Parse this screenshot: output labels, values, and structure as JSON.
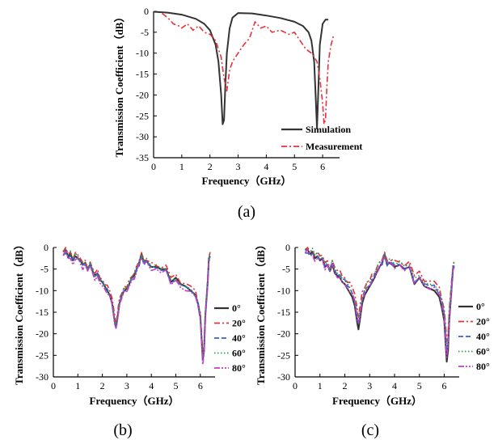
{
  "chart_data": [
    {
      "id": "a",
      "type": "line",
      "caption": "(a)",
      "xlabel": "Frequency（GHz）",
      "ylabel": "Transmission Coefficient（dB）",
      "xlim": [
        0,
        6.6
      ],
      "ylim": [
        -35,
        0
      ],
      "xticks": [
        0,
        1,
        2,
        3,
        4,
        5,
        6
      ],
      "yticks": [
        0,
        -5,
        -10,
        -15,
        -20,
        -25,
        -30,
        -35
      ],
      "legend_position": "bottom-right",
      "series": [
        {
          "name": "Simulation",
          "color": "#333333",
          "dash": "solid",
          "x": [
            0,
            0.5,
            1.0,
            1.5,
            1.8,
            2.0,
            2.2,
            2.3,
            2.4,
            2.45,
            2.5,
            2.55,
            2.6,
            2.7,
            2.8,
            3.0,
            3.5,
            4.0,
            4.5,
            5.0,
            5.3,
            5.5,
            5.6,
            5.7,
            5.75,
            5.8,
            5.85,
            5.9,
            6.0,
            6.1,
            6.2
          ],
          "y": [
            -0.1,
            -0.3,
            -0.8,
            -1.8,
            -3.0,
            -4.5,
            -8.0,
            -12.0,
            -20.0,
            -27.0,
            -26.0,
            -17.0,
            -10.0,
            -4.0,
            -1.5,
            -0.4,
            -0.5,
            -1.0,
            -1.6,
            -2.5,
            -3.5,
            -5.0,
            -7.0,
            -12.0,
            -20.0,
            -28.0,
            -18.0,
            -8.0,
            -3.0,
            -2.0,
            -2.0
          ]
        },
        {
          "name": "Measurement",
          "color": "#e8303a",
          "dash": "dashdot",
          "x": [
            0.3,
            0.5,
            0.7,
            0.9,
            1.0,
            1.2,
            1.4,
            1.6,
            1.8,
            2.0,
            2.2,
            2.4,
            2.5,
            2.6,
            2.7,
            2.8,
            3.0,
            3.2,
            3.4,
            3.6,
            3.8,
            4.0,
            4.2,
            4.5,
            4.8,
            5.0,
            5.2,
            5.4,
            5.6,
            5.8,
            5.9,
            6.0,
            6.05,
            6.1,
            6.15,
            6.2,
            6.3,
            6.4
          ],
          "y": [
            -0.5,
            -1.5,
            -3.0,
            -3.5,
            -4.0,
            -3.0,
            -4.5,
            -3.5,
            -5.0,
            -5.5,
            -7.0,
            -11.0,
            -16.0,
            -19.0,
            -14.0,
            -12.0,
            -10.0,
            -8.0,
            -6.5,
            -2.5,
            -4.0,
            -3.5,
            -5.0,
            -4.5,
            -5.5,
            -5.0,
            -7.0,
            -9.0,
            -10.0,
            -12.0,
            -16.0,
            -22.0,
            -27.0,
            -26.0,
            -18.0,
            -12.0,
            -8.0,
            -5.5
          ]
        }
      ]
    },
    {
      "id": "b",
      "type": "line",
      "caption": "(b)",
      "xlabel": "Frequency（GHz）",
      "ylabel": "Transmission Coefficient（dB）",
      "xlim": [
        0,
        6.6
      ],
      "ylim": [
        -30,
        0
      ],
      "xticks": [
        0,
        1,
        2,
        3,
        4,
        5,
        6
      ],
      "yticks": [
        0,
        -5,
        -10,
        -15,
        -20,
        -25,
        -30
      ],
      "legend_position": "right",
      "series": [
        {
          "name": "0°",
          "color": "#333333",
          "dash": "solid",
          "offset": 0.0,
          "scale": 1.0
        },
        {
          "name": "20°",
          "color": "#e8303a",
          "dash": "dashdot",
          "offset": 0.4,
          "scale": 0.97
        },
        {
          "name": "40°",
          "color": "#3b5fd0",
          "dash": "dash",
          "offset": -0.3,
          "scale": 0.98
        },
        {
          "name": "60°",
          "color": "#2a9d4a",
          "dash": "dot",
          "offset": 0.2,
          "scale": 0.99
        },
        {
          "name": "80°",
          "color": "#c040c8",
          "dash": "dashdotdot",
          "offset": -0.5,
          "scale": 1.01
        }
      ],
      "base_x": [
        0.4,
        0.5,
        0.6,
        0.7,
        0.8,
        0.9,
        1.0,
        1.1,
        1.2,
        1.3,
        1.4,
        1.5,
        1.6,
        1.7,
        1.8,
        1.9,
        2.0,
        2.1,
        2.2,
        2.3,
        2.4,
        2.5,
        2.55,
        2.6,
        2.7,
        2.8,
        2.9,
        3.0,
        3.1,
        3.2,
        3.3,
        3.4,
        3.5,
        3.6,
        3.7,
        3.8,
        3.9,
        4.0,
        4.2,
        4.4,
        4.6,
        4.8,
        5.0,
        5.2,
        5.4,
        5.6,
        5.8,
        5.9,
        6.0,
        6.05,
        6.1,
        6.15,
        6.2,
        6.3,
        6.35,
        6.4
      ],
      "base_y": [
        -1.0,
        -0.5,
        -2.0,
        -1.5,
        -3.0,
        -2.0,
        -2.5,
        -3.0,
        -4.0,
        -3.5,
        -5.0,
        -4.0,
        -5.5,
        -6.5,
        -6.0,
        -7.5,
        -8.0,
        -9.0,
        -10.0,
        -11.0,
        -13.0,
        -17.0,
        -18.5,
        -17.0,
        -13.0,
        -11.0,
        -10.0,
        -9.5,
        -8.5,
        -7.0,
        -6.5,
        -5.0,
        -3.5,
        -1.5,
        -3.5,
        -3.0,
        -4.0,
        -4.5,
        -4.5,
        -5.0,
        -5.0,
        -8.0,
        -7.0,
        -8.5,
        -9.0,
        -10.0,
        -11.0,
        -13.0,
        -16.0,
        -21.0,
        -26.0,
        -24.0,
        -16.0,
        -8.0,
        -2.5,
        -2.0
      ]
    },
    {
      "id": "c",
      "type": "line",
      "caption": "(c)",
      "xlabel": "Frequency（GHz）",
      "ylabel": "Transmission Coefficient（dB）",
      "xlim": [
        0,
        6.6
      ],
      "ylim": [
        -30,
        0
      ],
      "xticks": [
        0,
        1,
        2,
        3,
        4,
        5,
        6
      ],
      "yticks": [
        0,
        -5,
        -10,
        -15,
        -20,
        -25,
        -30
      ],
      "legend_position": "right",
      "series": [
        {
          "name": "0°",
          "color": "#333333",
          "dash": "solid",
          "offset": 0.0,
          "scale": 1.0
        },
        {
          "name": "20°",
          "color": "#e8303a",
          "dash": "dashdot",
          "offset": 0.3,
          "scale": 0.85
        },
        {
          "name": "40°",
          "color": "#3b5fd0",
          "dash": "dash",
          "offset": -0.3,
          "scale": 0.9
        },
        {
          "name": "60°",
          "color": "#2a9d4a",
          "dash": "dot",
          "offset": 0.2,
          "scale": 0.88
        },
        {
          "name": "80°",
          "color": "#c040c8",
          "dash": "dashdotdot",
          "offset": -0.4,
          "scale": 0.93
        }
      ],
      "base_x": [
        0.4,
        0.5,
        0.6,
        0.7,
        0.8,
        0.9,
        1.0,
        1.1,
        1.2,
        1.3,
        1.4,
        1.5,
        1.6,
        1.7,
        1.8,
        1.9,
        2.0,
        2.1,
        2.2,
        2.3,
        2.4,
        2.5,
        2.55,
        2.6,
        2.7,
        2.8,
        2.9,
        3.0,
        3.1,
        3.2,
        3.3,
        3.4,
        3.5,
        3.6,
        3.7,
        3.8,
        3.9,
        4.0,
        4.2,
        4.4,
        4.6,
        4.8,
        5.0,
        5.2,
        5.4,
        5.6,
        5.8,
        5.9,
        6.0,
        6.05,
        6.1,
        6.15,
        6.2,
        6.3,
        6.35,
        6.4
      ],
      "base_y": [
        -0.5,
        -0.5,
        -1.5,
        -1.0,
        -2.5,
        -2.0,
        -3.0,
        -2.5,
        -4.5,
        -4.0,
        -5.5,
        -4.0,
        -6.0,
        -6.5,
        -7.0,
        -8.0,
        -8.5,
        -9.5,
        -10.5,
        -11.5,
        -13.5,
        -17.5,
        -19.0,
        -17.0,
        -13.0,
        -11.0,
        -10.0,
        -9.0,
        -8.0,
        -7.0,
        -5.5,
        -4.5,
        -3.5,
        -1.5,
        -4.0,
        -3.5,
        -4.0,
        -4.5,
        -4.0,
        -5.0,
        -4.5,
        -8.5,
        -7.0,
        -9.0,
        -9.5,
        -10.0,
        -11.5,
        -14.0,
        -17.0,
        -22.0,
        -26.5,
        -24.0,
        -17.0,
        -9.0,
        -5.0,
        -4.5
      ]
    }
  ]
}
